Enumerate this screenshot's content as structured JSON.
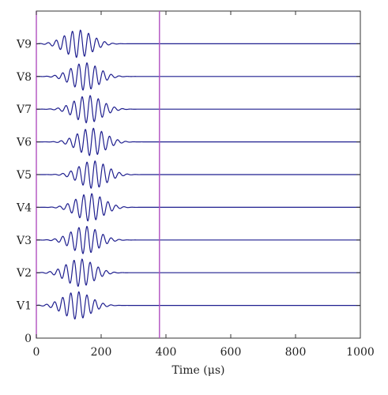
{
  "chart_data": {
    "type": "line",
    "title": "",
    "xlabel": "Time (μs)",
    "ylabel": "",
    "xlim": [
      0,
      1000
    ],
    "ylim": [
      0,
      10
    ],
    "x_ticks": [
      0,
      200,
      400,
      600,
      800,
      1000
    ],
    "y_tick_labels": [
      "0",
      "V1",
      "V2",
      "V3",
      "V4",
      "V5",
      "V6",
      "V7",
      "V8",
      "V9"
    ],
    "grid": false,
    "legend": "none",
    "colors": {
      "signal": "#1f1f8f",
      "marker": "#b04fc0",
      "axis": "#333333"
    },
    "vertical_markers": [
      0,
      380
    ],
    "series": [
      {
        "name": "V1",
        "baseline": 1,
        "center_time_us": 125,
        "amplitude": 0.42,
        "period_us": 25,
        "sigma_us": 42
      },
      {
        "name": "V2",
        "baseline": 2,
        "center_time_us": 135,
        "amplitude": 0.42,
        "period_us": 25,
        "sigma_us": 42
      },
      {
        "name": "V3",
        "baseline": 3,
        "center_time_us": 150,
        "amplitude": 0.42,
        "period_us": 25,
        "sigma_us": 42
      },
      {
        "name": "V4",
        "baseline": 4,
        "center_time_us": 165,
        "amplitude": 0.42,
        "period_us": 25,
        "sigma_us": 42
      },
      {
        "name": "V5",
        "baseline": 5,
        "center_time_us": 175,
        "amplitude": 0.42,
        "period_us": 25,
        "sigma_us": 42
      },
      {
        "name": "V6",
        "baseline": 6,
        "center_time_us": 170,
        "amplitude": 0.42,
        "period_us": 25,
        "sigma_us": 42
      },
      {
        "name": "V7",
        "baseline": 7,
        "center_time_us": 160,
        "amplitude": 0.42,
        "period_us": 25,
        "sigma_us": 42
      },
      {
        "name": "V8",
        "baseline": 8,
        "center_time_us": 150,
        "amplitude": 0.42,
        "period_us": 25,
        "sigma_us": 42
      },
      {
        "name": "V9",
        "baseline": 9,
        "center_time_us": 130,
        "amplitude": 0.42,
        "period_us": 25,
        "sigma_us": 42
      }
    ]
  }
}
